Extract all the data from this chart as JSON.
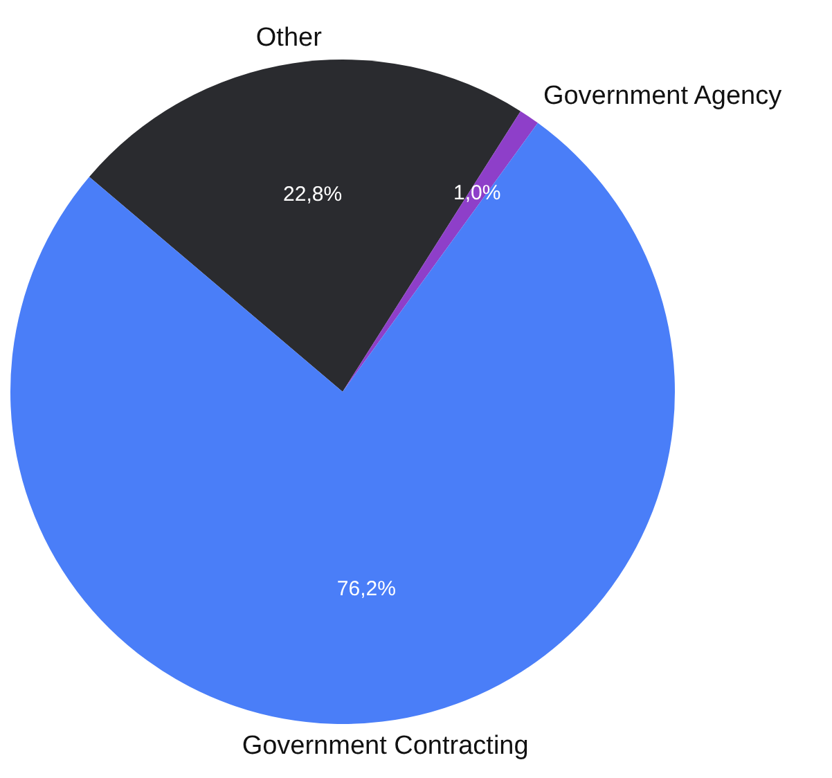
{
  "chart_data": {
    "type": "pie",
    "categories": [
      "Other",
      "Government Agency",
      "Government Contracting"
    ],
    "values": [
      22.8,
      1.0,
      76.2
    ],
    "colors": [
      "#2a2b2f",
      "#8e3fc9",
      "#4a7ef8"
    ],
    "value_labels": [
      "22,8%",
      "1,0%",
      "76,2%"
    ],
    "legend": false
  }
}
